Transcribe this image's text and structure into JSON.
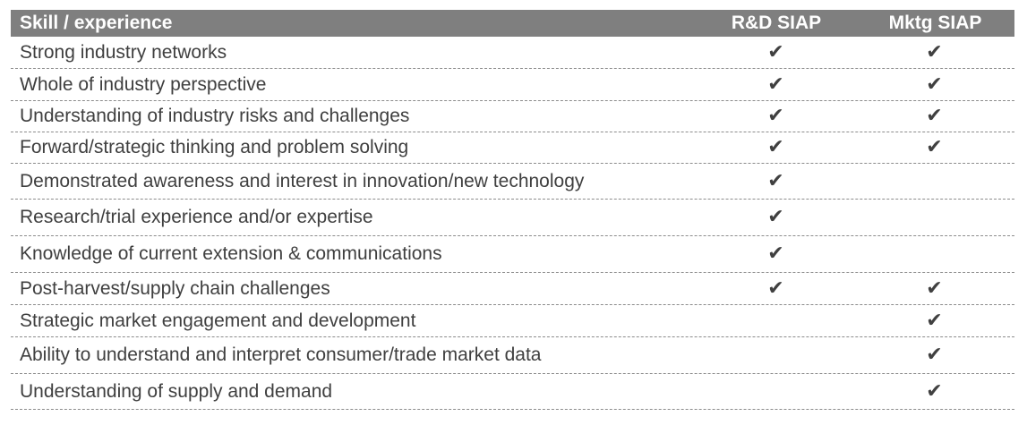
{
  "header": {
    "skill": "Skill / experience",
    "rd": "R&D SIAP",
    "mktg": "Mktg SIAP"
  },
  "check_symbol": "✔",
  "rows": [
    {
      "skill": "Strong industry networks",
      "rd": "✔",
      "mktg": "✔"
    },
    {
      "skill": "Whole of industry perspective",
      "rd": "✔",
      "mktg": "✔"
    },
    {
      "skill": "Understanding of industry risks and challenges",
      "rd": "✔",
      "mktg": "✔"
    },
    {
      "skill": "Forward/strategic thinking and problem solving",
      "rd": "✔",
      "mktg": "✔"
    },
    {
      "skill": "Demonstrated awareness and interest in innovation/new technology",
      "rd": "✔",
      "mktg": ""
    },
    {
      "skill": "Research/trial experience and/or expertise",
      "rd": "✔",
      "mktg": ""
    },
    {
      "skill": "Knowledge of current extension & communications",
      "rd": "✔",
      "mktg": ""
    },
    {
      "skill": "Post-harvest/supply chain challenges",
      "rd": "✔",
      "mktg": "✔"
    },
    {
      "skill": "Strategic market engagement and development",
      "rd": "",
      "mktg": "✔"
    },
    {
      "skill": "Ability to understand and interpret consumer/trade market data",
      "rd": "",
      "mktg": "✔"
    },
    {
      "skill": "Understanding of supply and demand",
      "rd": "",
      "mktg": "✔"
    }
  ]
}
